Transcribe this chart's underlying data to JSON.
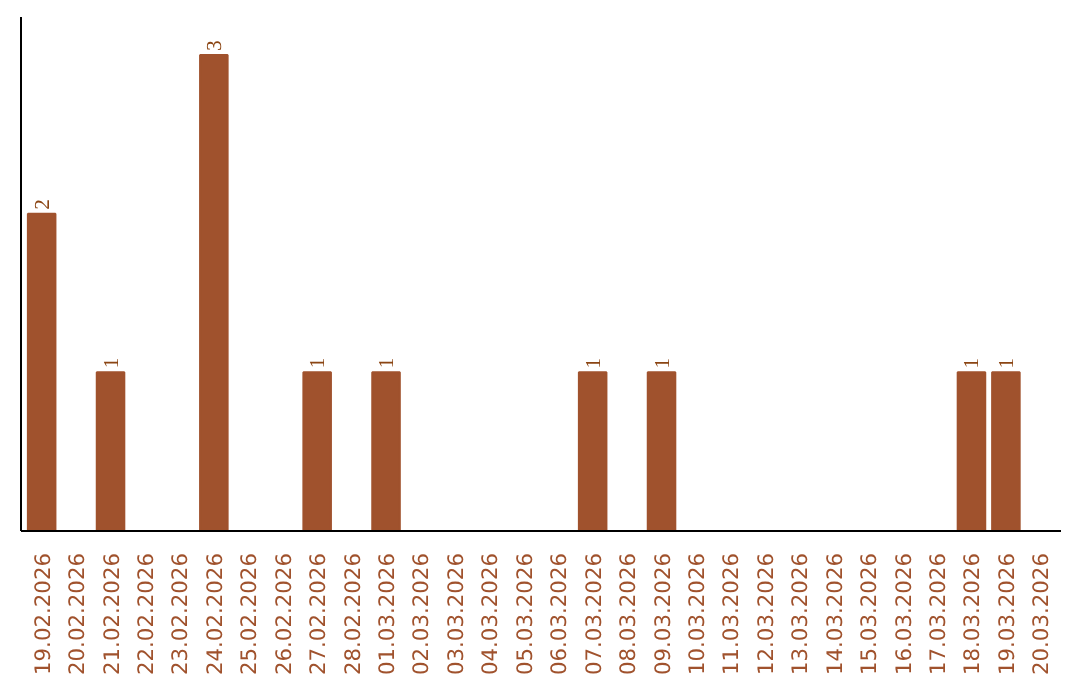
{
  "chart_data": {
    "type": "bar",
    "categories": [
      "19.02.2026",
      "20.02.2026",
      "21.02.2026",
      "22.02.2026",
      "23.02.2026",
      "24.02.2026",
      "25.02.2026",
      "26.02.2026",
      "27.02.2026",
      "28.02.2026",
      "01.03.2026",
      "02.03.2026",
      "03.03.2026",
      "04.03.2026",
      "05.03.2026",
      "06.03.2026",
      "07.03.2026",
      "08.03.2026",
      "09.03.2026",
      "10.03.2026",
      "11.03.2026",
      "12.03.2026",
      "13.03.2026",
      "14.03.2026",
      "15.03.2026",
      "16.03.2026",
      "17.03.2026",
      "18.03.2026",
      "19.03.2026",
      "20.03.2026"
    ],
    "values": [
      2,
      0,
      1,
      0,
      0,
      3,
      0,
      0,
      1,
      0,
      1,
      0,
      0,
      0,
      0,
      0,
      1,
      0,
      1,
      0,
      0,
      0,
      0,
      0,
      0,
      0,
      0,
      1,
      1,
      0
    ],
    "value_labels": [
      "2",
      null,
      "1",
      null,
      null,
      "3",
      null,
      null,
      "1",
      null,
      "1",
      null,
      null,
      null,
      null,
      null,
      "1",
      null,
      "1",
      null,
      null,
      null,
      null,
      null,
      null,
      null,
      null,
      "1",
      "1",
      null
    ],
    "color": "#a0522d",
    "tick_labels": "x"
  }
}
